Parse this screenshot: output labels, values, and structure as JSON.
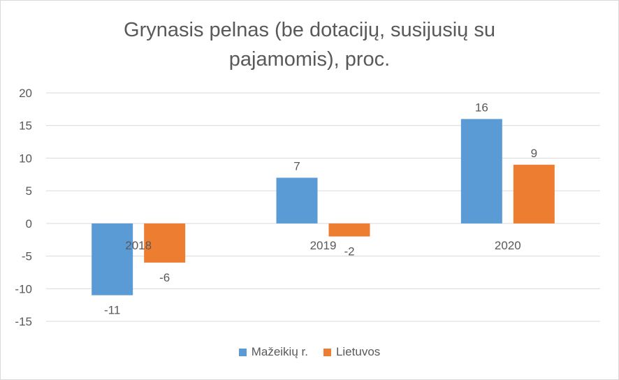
{
  "chart_data": {
    "type": "bar",
    "title_lines": [
      "Grynasis pelnas (be dotacijų, susijusių su",
      "pajamomis), proc."
    ],
    "categories": [
      "2018",
      "2019",
      "2020"
    ],
    "series": [
      {
        "name": "Mažeikių r.",
        "values": [
          -11,
          7,
          16
        ],
        "color": "#5b9bd5"
      },
      {
        "name": "Lietuvos",
        "values": [
          -6,
          -2,
          9
        ],
        "color": "#ed7d31"
      }
    ],
    "ylim": [
      -15,
      20
    ],
    "yticks": [
      -15,
      -10,
      -5,
      0,
      5,
      10,
      15,
      20
    ],
    "grid": true,
    "legend_position": "bottom",
    "gridline_color": "#d9d9d9",
    "text_color": "#595959"
  }
}
